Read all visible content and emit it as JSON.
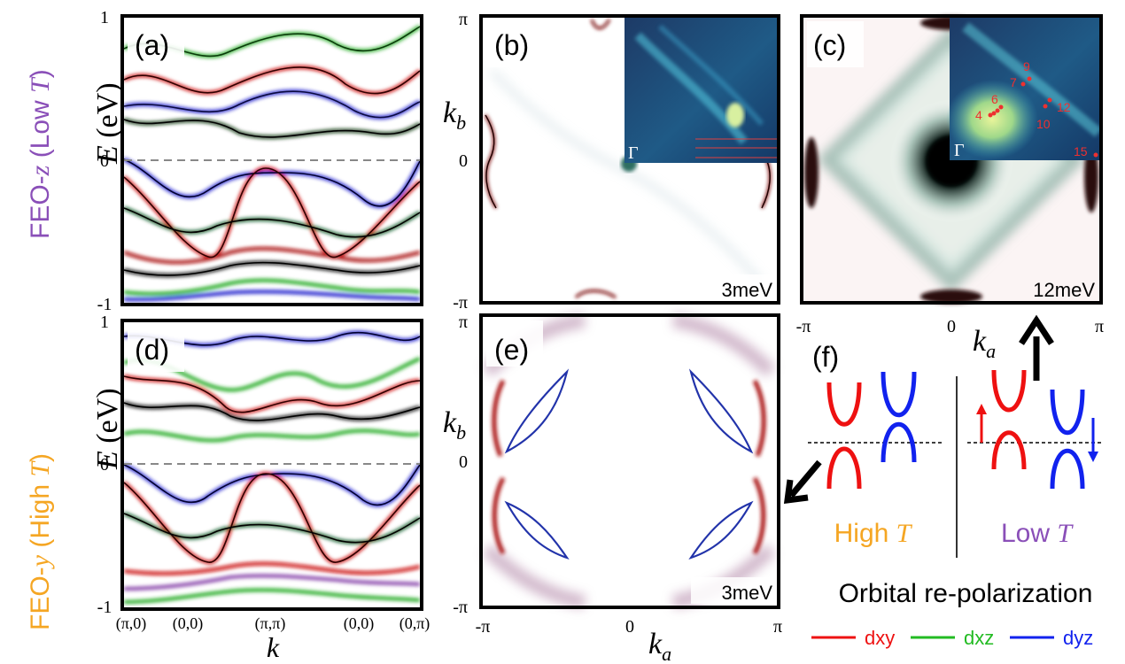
{
  "rows": [
    {
      "material": "FEO-",
      "variable": "z",
      "cond_open": "(Low ",
      "T": "T",
      "cond_close": ")",
      "color": "#8a4fb8"
    },
    {
      "material": "FEO-",
      "variable": "y",
      "cond_open": "(High ",
      "T": "T",
      "cond_close": ")",
      "color": "#f5a623"
    }
  ],
  "panels": {
    "a": "(a)",
    "b": "(b)",
    "c": "(c)",
    "d": "(d)",
    "e": "(e)",
    "f": "(f)"
  },
  "band_axis": {
    "y_symbol": "E",
    "y_unit": " (eV)",
    "y_ticks": [
      "1",
      "0",
      "-1"
    ],
    "x_symbol": "k",
    "x_ticks": [
      "(π,0)",
      "(0,0)",
      "(π,π)",
      "(0,0)",
      "(0,π)"
    ]
  },
  "fs_axis": {
    "kb": "k",
    "kb_sub": "b",
    "ka": "k",
    "ka_sub": "a",
    "y_ticks": [
      "π",
      "0",
      "-π"
    ],
    "x_ticks": [
      "-π",
      "0",
      "π"
    ]
  },
  "energies": {
    "b": "3meV",
    "c": "12meV",
    "e": "3meV"
  },
  "inset_gamma": "Γ",
  "inset_points": [
    "4",
    "6",
    "7",
    "9",
    "10",
    "12",
    "15"
  ],
  "schematic": {
    "high_label": "High ",
    "low_label": "Low ",
    "T": "T",
    "high_color": "#f5a623",
    "low_color": "#8a4fb8",
    "title": "Orbital re-polarization"
  },
  "legend": [
    {
      "label": "dxy",
      "color": "#ee1111"
    },
    {
      "label": "dxz",
      "color": "#22bb22"
    },
    {
      "label": "dyz",
      "color": "#1122ee"
    }
  ]
}
